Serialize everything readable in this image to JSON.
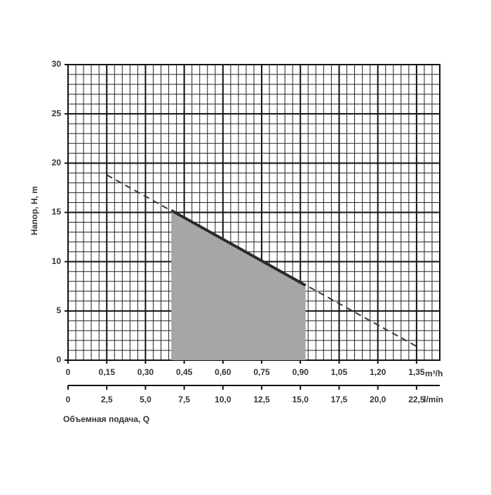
{
  "chart_data": {
    "type": "line",
    "ylabel": "Напор, H, m",
    "xlabel": "Объемная подача, Q",
    "xunit": "m³/h",
    "x2unit": "l/min",
    "xlim": [
      0,
      1.44
    ],
    "xticks": [
      0,
      {
        "value": 0.15,
        "label": "0,15"
      },
      {
        "value": 0.3,
        "label": "0,30"
      },
      {
        "value": 0.45,
        "label": "0,45"
      },
      {
        "value": 0.6,
        "label": "0,60"
      },
      {
        "value": 0.75,
        "label": "0,75"
      },
      {
        "value": 0.9,
        "label": "0,90"
      },
      {
        "value": 1.05,
        "label": "1,05"
      },
      {
        "value": 1.2,
        "label": "1,20"
      },
      {
        "value": 1.35,
        "label": "1,35"
      }
    ],
    "x2lim": [
      0,
      24
    ],
    "x2ticks": [
      0,
      {
        "value": 2.5,
        "label": "2,5"
      },
      {
        "value": 5,
        "label": "5,0"
      },
      {
        "value": 7.5,
        "label": "7,5"
      },
      {
        "value": 10,
        "label": "10,0"
      },
      {
        "value": 12.5,
        "label": "12,5"
      },
      {
        "value": 15,
        "label": "15,0"
      },
      {
        "value": 17.5,
        "label": "17,5"
      },
      {
        "value": 20,
        "label": "20,0"
      },
      {
        "value": 22.5,
        "label": "22,5"
      }
    ],
    "ylim": [
      0,
      30
    ],
    "yticks": [
      0,
      5,
      10,
      15,
      20,
      25,
      30
    ],
    "grid": true,
    "series": [
      {
        "x": [
          0.15,
          1.35
        ],
        "values": [
          18.8,
          1.4
        ],
        "color": "#3a3a3a",
        "style": "dashed"
      },
      {
        "x": [
          0.4,
          0.92
        ],
        "values": [
          15.2,
          7.6
        ],
        "color": "#2a2a2a",
        "style": "solid",
        "fill": "#a6a6a6"
      }
    ]
  }
}
